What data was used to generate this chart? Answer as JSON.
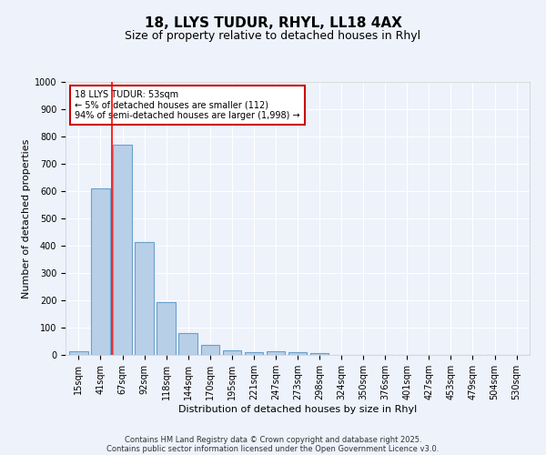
{
  "title1": "18, LLYS TUDUR, RHYL, LL18 4AX",
  "title2": "Size of property relative to detached houses in Rhyl",
  "xlabel": "Distribution of detached houses by size in Rhyl",
  "ylabel": "Number of detached properties",
  "bin_labels": [
    "15sqm",
    "41sqm",
    "67sqm",
    "92sqm",
    "118sqm",
    "144sqm",
    "170sqm",
    "195sqm",
    "221sqm",
    "247sqm",
    "273sqm",
    "298sqm",
    "324sqm",
    "350sqm",
    "376sqm",
    "401sqm",
    "427sqm",
    "453sqm",
    "479sqm",
    "504sqm",
    "530sqm"
  ],
  "bar_values": [
    15,
    610,
    770,
    415,
    195,
    80,
    38,
    18,
    10,
    13,
    10,
    8,
    0,
    0,
    0,
    0,
    0,
    0,
    0,
    0,
    0
  ],
  "bar_color": "#b8cfe8",
  "bar_edge_color": "#6aa0cc",
  "red_line_bin_index": 2,
  "annotation_text": "18 LLYS TUDUR: 53sqm\n← 5% of detached houses are smaller (112)\n94% of semi-detached houses are larger (1,998) →",
  "annotation_box_color": "#ffffff",
  "annotation_box_edge": "#cc0000",
  "ylim": [
    0,
    1000
  ],
  "yticks": [
    0,
    100,
    200,
    300,
    400,
    500,
    600,
    700,
    800,
    900,
    1000
  ],
  "footer1": "Contains HM Land Registry data © Crown copyright and database right 2025.",
  "footer2": "Contains public sector information licensed under the Open Government Licence v3.0.",
  "bg_color": "#eef2fb",
  "grid_color": "#ffffff",
  "title_fontsize": 11,
  "subtitle_fontsize": 9,
  "axis_label_fontsize": 8,
  "tick_fontsize": 7,
  "annotation_fontsize": 7,
  "footer_fontsize": 6
}
